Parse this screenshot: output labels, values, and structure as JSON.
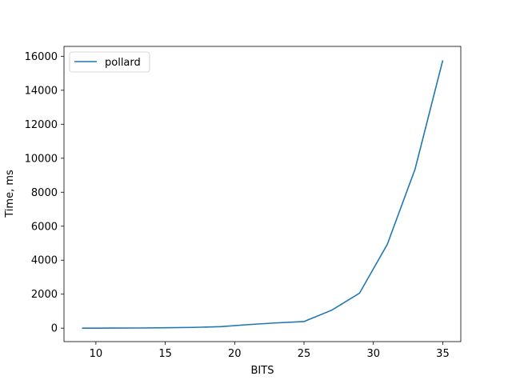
{
  "chart_data": {
    "type": "line",
    "title": "",
    "xlabel": "BITS",
    "ylabel": "Time, ms",
    "xlim": [
      7.7,
      36.3
    ],
    "ylim": [
      -790,
      16580
    ],
    "xticks": [
      10,
      15,
      20,
      25,
      30,
      35
    ],
    "yticks": [
      0,
      2000,
      4000,
      6000,
      8000,
      10000,
      12000,
      14000,
      16000
    ],
    "grid": false,
    "legend_position": "upper-left",
    "series": [
      {
        "name": "pollard",
        "color": "#1f77b4",
        "x": [
          9,
          11,
          13,
          15,
          17,
          19,
          21,
          23,
          25,
          27,
          29,
          31,
          33,
          35
        ],
        "y": [
          0,
          5,
          10,
          25,
          45,
          90,
          210,
          310,
          390,
          1060,
          2060,
          4930,
          9350,
          15760
        ]
      }
    ]
  }
}
